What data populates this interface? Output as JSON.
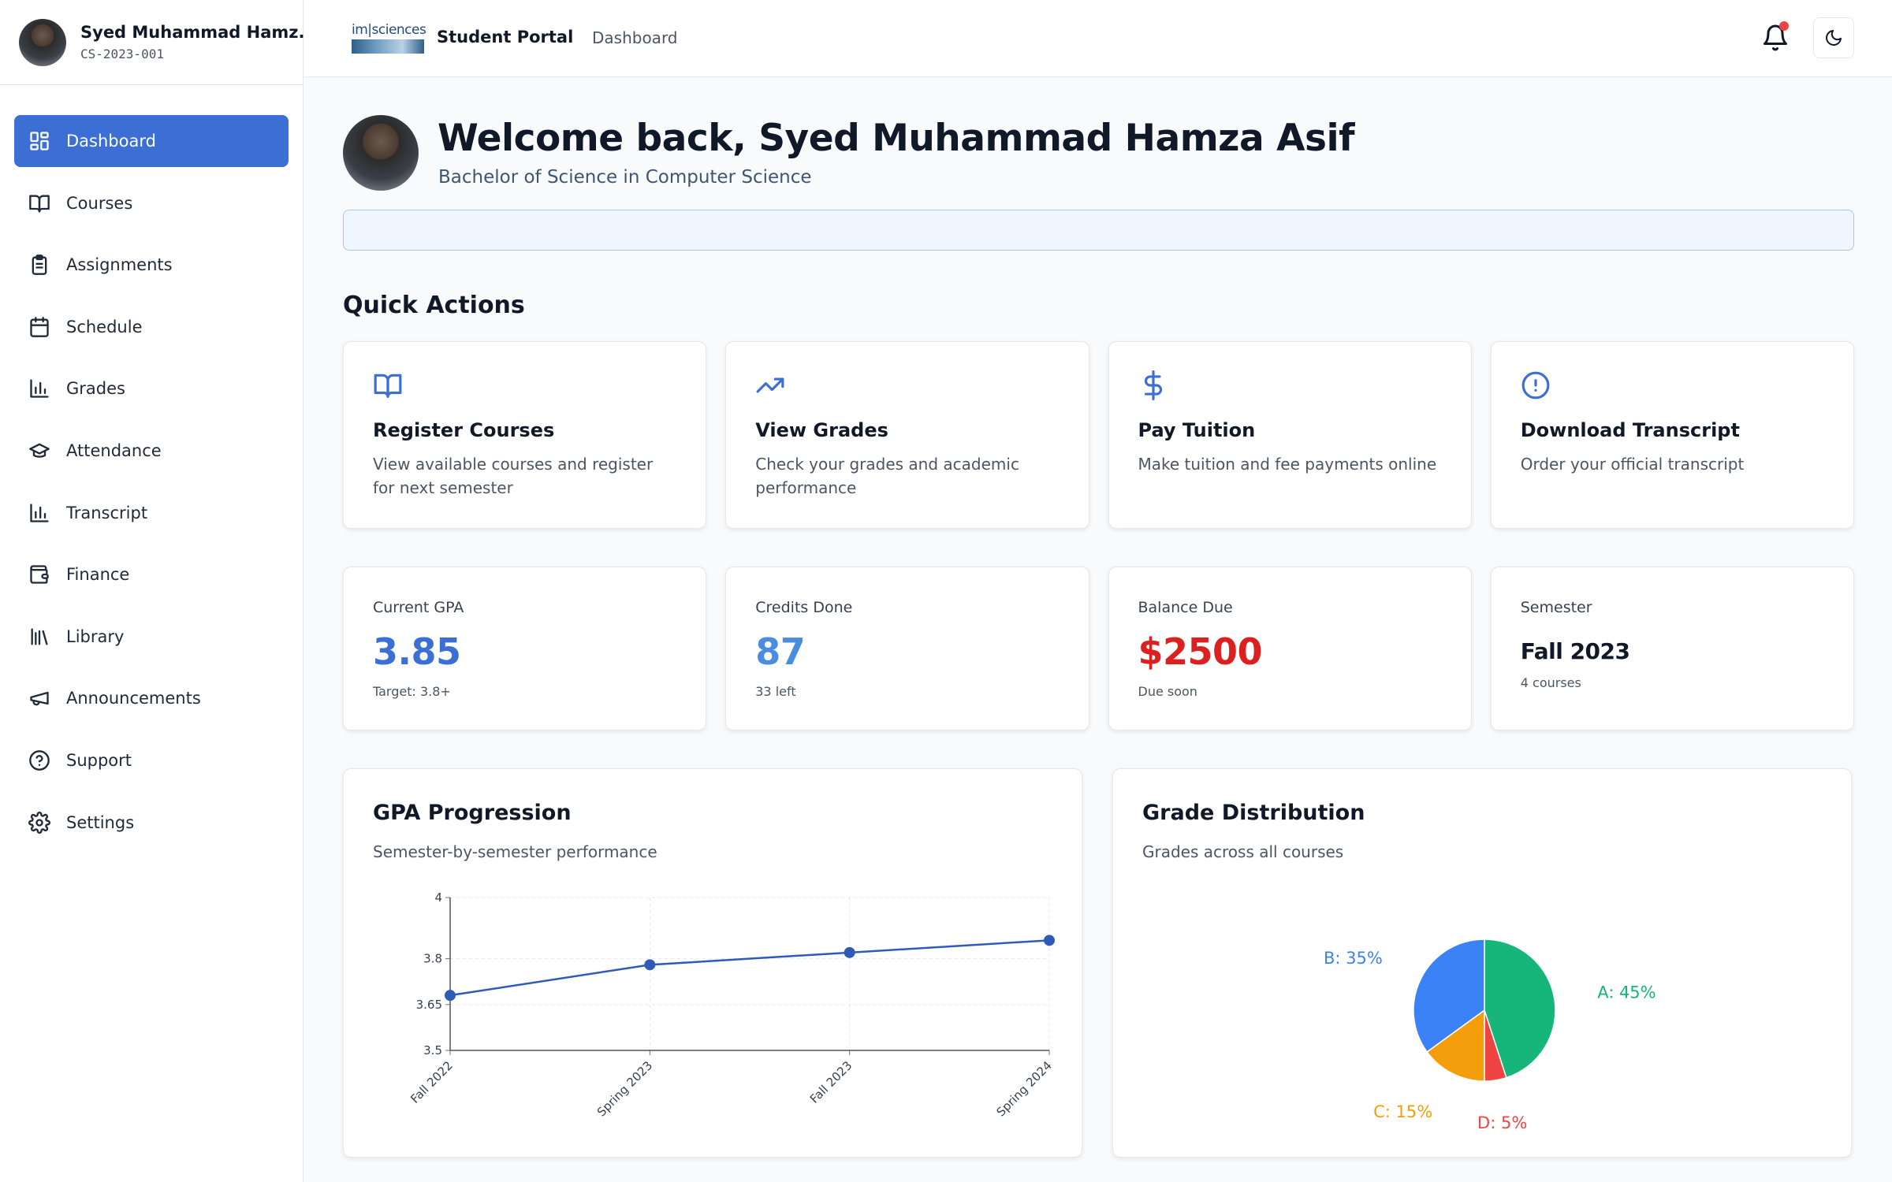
{
  "profile": {
    "name": "Syed Muhammad Hamz...",
    "id": "CS-2023-001"
  },
  "sidebar": {
    "items": [
      {
        "label": "Dashboard",
        "icon": "dashboard-grid-icon",
        "active": true
      },
      {
        "label": "Courses",
        "icon": "book-icon"
      },
      {
        "label": "Assignments",
        "icon": "clipboard-icon"
      },
      {
        "label": "Schedule",
        "icon": "calendar-icon"
      },
      {
        "label": "Grades",
        "icon": "bar-chart-icon"
      },
      {
        "label": "Attendance",
        "icon": "graduation-cap-icon"
      },
      {
        "label": "Transcript",
        "icon": "bar-chart-icon"
      },
      {
        "label": "Finance",
        "icon": "wallet-icon"
      },
      {
        "label": "Library",
        "icon": "library-icon"
      },
      {
        "label": "Announcements",
        "icon": "megaphone-icon"
      },
      {
        "label": "Support",
        "icon": "help-circle-icon"
      },
      {
        "label": "Settings",
        "icon": "gear-icon"
      }
    ]
  },
  "topbar": {
    "logo_text": "im|sciences",
    "portal_title": "Student Portal",
    "breadcrumb": "Dashboard"
  },
  "welcome": {
    "title": "Welcome back, Syed Muhammad Hamza Asif",
    "subtitle": "Bachelor of Science in Computer Science"
  },
  "quick_actions": {
    "title": "Quick Actions",
    "items": [
      {
        "title": "Register Courses",
        "desc": "View available courses and register for next semester",
        "icon": "book-icon"
      },
      {
        "title": "View Grades",
        "desc": "Check your grades and academic performance",
        "icon": "trending-up-icon"
      },
      {
        "title": "Pay Tuition",
        "desc": "Make tuition and fee payments online",
        "icon": "dollar-icon"
      },
      {
        "title": "Download Transcript",
        "desc": "Order your official transcript",
        "icon": "alert-circle-icon"
      }
    ]
  },
  "stats": [
    {
      "label": "Current GPA",
      "value": "3.85",
      "sub": "Target: 3.8+",
      "color": "#3b6fd4"
    },
    {
      "label": "Credits Done",
      "value": "87",
      "sub": "33 left",
      "color": "#4a8de0"
    },
    {
      "label": "Balance Due",
      "value": "$2500",
      "sub": "Due soon",
      "color": "#dc1f1f"
    },
    {
      "label": "Semester",
      "value": "Fall 2023",
      "sub": "4 courses",
      "color": "#111827"
    }
  ],
  "gpa_chart": {
    "title": "GPA Progression",
    "subtitle": "Semester-by-semester performance"
  },
  "grade_chart": {
    "title": "Grade Distribution",
    "subtitle": "Grades across all courses"
  },
  "chart_data": [
    {
      "type": "line",
      "x": [
        "Fall 2022",
        "Spring 2023",
        "Fall 2023",
        "Spring 2024"
      ],
      "series": [
        {
          "values": [
            3.68,
            3.78,
            3.82,
            3.86
          ]
        }
      ],
      "yticks": [
        "3.5",
        "3.65",
        "3.8",
        "4"
      ],
      "ylim": [
        3.5,
        4.0
      ],
      "grid": true,
      "color": "#2f5bb7"
    },
    {
      "type": "pie",
      "slices": [
        {
          "label": "A: 45%",
          "value": 45,
          "color": "#16b57a"
        },
        {
          "label": "D: 5%",
          "value": 5,
          "color": "#ef4444"
        },
        {
          "label": "C: 15%",
          "value": 15,
          "color": "#f59e0b"
        },
        {
          "label": "B: 35%",
          "value": 35,
          "color": "#3b82f6"
        }
      ]
    }
  ]
}
